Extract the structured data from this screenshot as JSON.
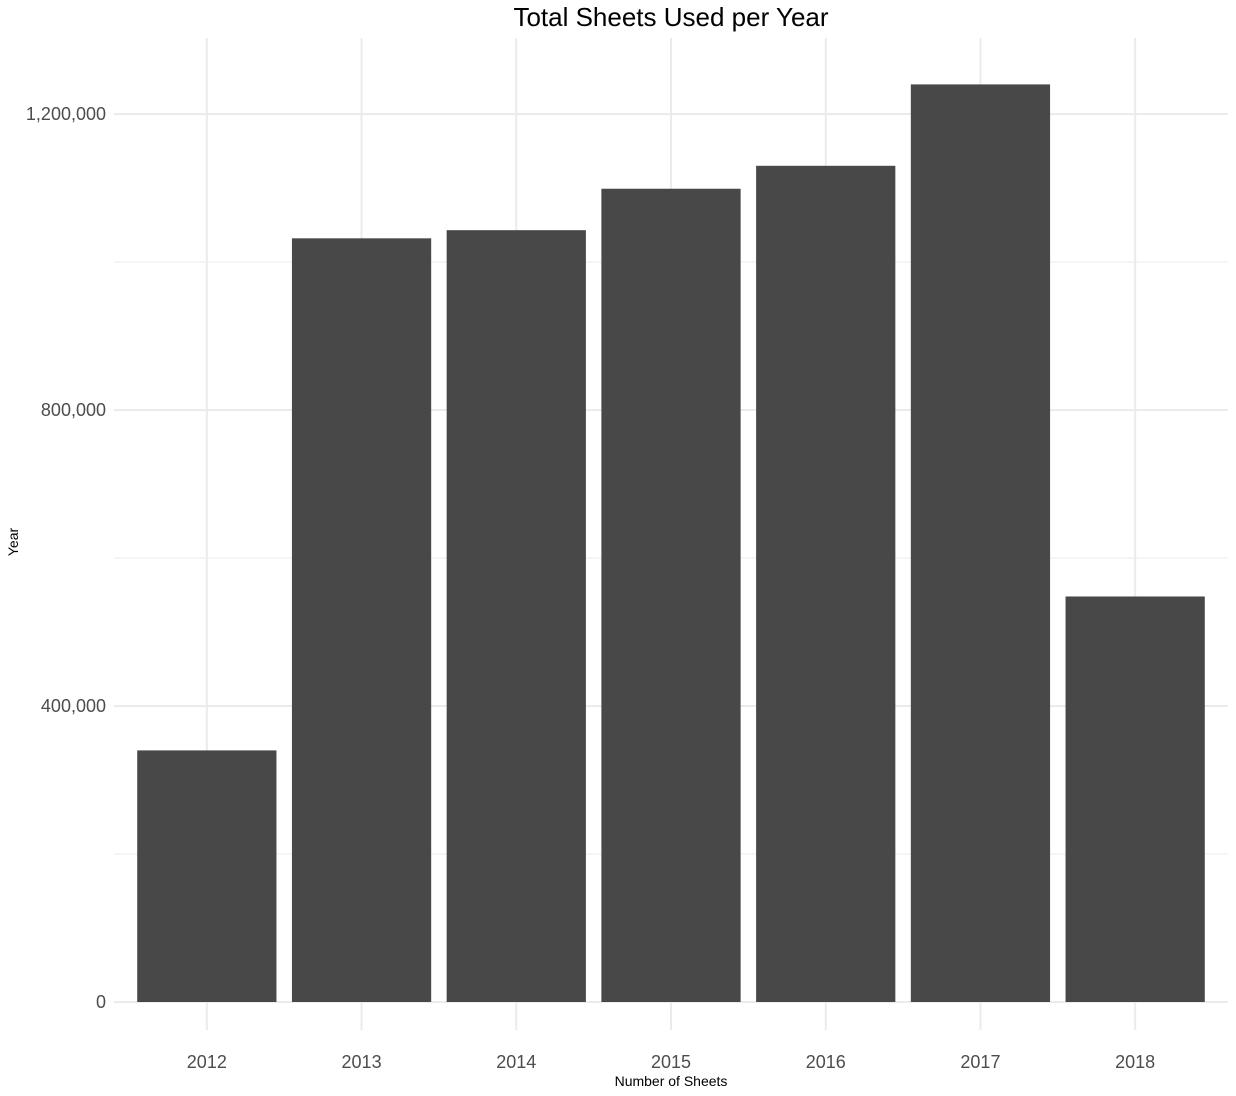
{
  "chart_data": {
    "type": "bar",
    "title": "Total Sheets Used per Year",
    "xlabel": "Number of Sheets",
    "ylabel": "Year",
    "categories": [
      "2012",
      "2013",
      "2014",
      "2015",
      "2016",
      "2017",
      "2018"
    ],
    "values": [
      340000,
      1032000,
      1043000,
      1099000,
      1130000,
      1240000,
      548000
    ],
    "ylim": [
      0,
      1300000
    ],
    "yticks": [
      0,
      400000,
      800000,
      1200000
    ],
    "ytick_labels": [
      "0",
      "400,000",
      "800,000",
      "1,200,000"
    ],
    "grid": true,
    "legend": "none",
    "colors": {
      "bar": "#484848",
      "grid": "#ebebeb",
      "background": "#ffffff"
    }
  }
}
